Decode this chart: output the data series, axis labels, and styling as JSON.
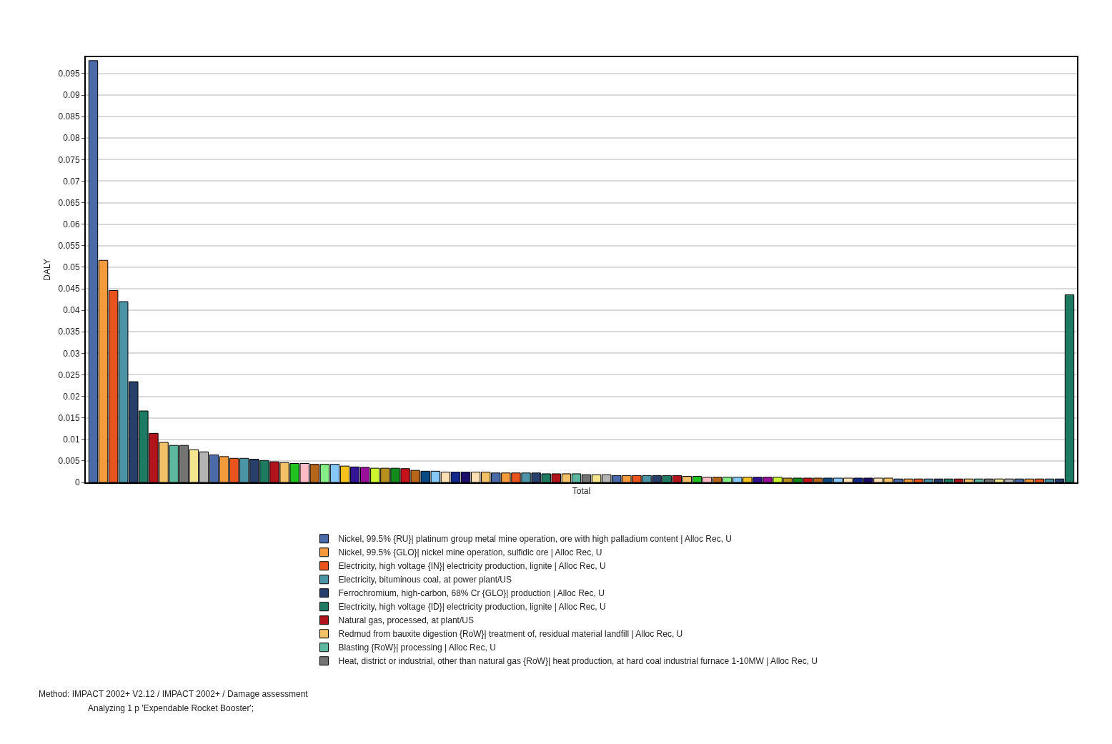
{
  "chart_data": {
    "type": "bar",
    "ylabel": "DALY",
    "categories": [
      "Total"
    ],
    "ylim": [
      0,
      0.0988
    ],
    "yticks": [
      0,
      0.005,
      0.01,
      0.015,
      0.02,
      0.025,
      0.03,
      0.035,
      0.04,
      0.045,
      0.05,
      0.055,
      0.06,
      0.065,
      0.07,
      0.075,
      0.08,
      0.085,
      0.09,
      0.095
    ],
    "grid": "y",
    "legend": "bottom",
    "annotations": [
      "Method: IMPACT 2002+ V2.12 / IMPACT 2002+ / Damage assessment",
      "Analyzing 1 p 'Expendable Rocket Booster';"
    ],
    "series": [
      {
        "name": "Nickel, 99.5% {RU}| platinum group metal mine operation, ore with high palladium content | Alloc Rec, U",
        "color": "#4a6aa8",
        "values": [
          0.098
        ]
      },
      {
        "name": "Nickel, 99.5% {GLO}| nickel mine operation, sulfidic ore | Alloc Rec, U",
        "color": "#f39a3c",
        "values": [
          0.0516
        ]
      },
      {
        "name": "Electricity, high voltage {IN}| electricity production, lignite | Alloc Rec, U",
        "color": "#e9531d",
        "values": [
          0.0446
        ]
      },
      {
        "name": "Electricity, bituminous coal, at power plant/US",
        "color": "#4a94a6",
        "values": [
          0.042
        ]
      },
      {
        "name": "Ferrochromium, high-carbon, 68% Cr {GLO}| production | Alloc Rec, U",
        "color": "#283f6c",
        "values": [
          0.0234
        ]
      },
      {
        "name": "Electricity, high voltage {ID}| electricity production, lignite | Alloc Rec, U",
        "color": "#1e7a60",
        "values": [
          0.0166
        ]
      },
      {
        "name": "Natural gas, processed, at plant/US",
        "color": "#b2141c",
        "values": [
          0.0114
        ]
      },
      {
        "name": "Redmud from bauxite digestion {RoW}| treatment of, residual material landfill | Alloc Rec, U",
        "color": "#f2c066",
        "values": [
          0.0093
        ]
      },
      {
        "name": "Blasting {RoW}| processing | Alloc Rec, U",
        "color": "#5db8a0",
        "values": [
          0.0086
        ]
      },
      {
        "name": "Heat, district or industrial, other than natural gas {RoW}| heat production, at hard coal industrial furnace 1-10MW | Alloc Rec, U",
        "color": "#747474",
        "values": [
          0.0086
        ]
      },
      {
        "color": "#f3e48e",
        "values": [
          0.0076
        ]
      },
      {
        "color": "#b4b4b4",
        "values": [
          0.0071
        ]
      },
      {
        "color": "#4a6aa8",
        "values": [
          0.0064
        ]
      },
      {
        "color": "#f39a3c",
        "values": [
          0.006
        ]
      },
      {
        "color": "#e9531d",
        "values": [
          0.0056
        ]
      },
      {
        "color": "#4a94a6",
        "values": [
          0.0056
        ]
      },
      {
        "color": "#283f6c",
        "values": [
          0.0054
        ]
      },
      {
        "color": "#1e7a60",
        "values": [
          0.0051
        ]
      },
      {
        "color": "#b2141c",
        "values": [
          0.0048
        ]
      },
      {
        "color": "#f2c066",
        "values": [
          0.0046
        ]
      },
      {
        "color": "#1fc21f",
        "values": [
          0.0044
        ]
      },
      {
        "color": "#ffbcc4",
        "values": [
          0.0044
        ]
      },
      {
        "color": "#b8651c",
        "values": [
          0.0042
        ]
      },
      {
        "color": "#86ee86",
        "values": [
          0.0042
        ]
      },
      {
        "color": "#86c8f8",
        "values": [
          0.0042
        ]
      },
      {
        "color": "#f8c21c",
        "values": [
          0.0038
        ]
      },
      {
        "color": "#341494",
        "values": [
          0.0036
        ]
      },
      {
        "color": "#9a109a",
        "values": [
          0.0035
        ]
      },
      {
        "color": "#cdf52e",
        "values": [
          0.0033
        ]
      },
      {
        "color": "#b8901c",
        "values": [
          0.0033
        ]
      },
      {
        "color": "#128a1c",
        "values": [
          0.0033
        ]
      },
      {
        "color": "#c4121c",
        "values": [
          0.0032
        ]
      },
      {
        "color": "#b8651c",
        "values": [
          0.0028
        ]
      },
      {
        "color": "#0c4a84",
        "values": [
          0.0026
        ]
      },
      {
        "color": "#86c8f8",
        "values": [
          0.0026
        ]
      },
      {
        "color": "#ffe0b4",
        "values": [
          0.0024
        ]
      },
      {
        "color": "#12288c",
        "values": [
          0.0024
        ]
      },
      {
        "color": "#1c0c6c",
        "values": [
          0.0024
        ]
      },
      {
        "color": "#ffe0b4",
        "values": [
          0.0024
        ]
      },
      {
        "color": "#f2c066",
        "values": [
          0.0024
        ]
      },
      {
        "color": "#4a6aa8",
        "values": [
          0.0022
        ]
      },
      {
        "color": "#f39a3c",
        "values": [
          0.0022
        ]
      },
      {
        "color": "#e9531d",
        "values": [
          0.0022
        ]
      },
      {
        "color": "#4a94a6",
        "values": [
          0.0022
        ]
      },
      {
        "color": "#283f6c",
        "values": [
          0.0022
        ]
      },
      {
        "color": "#1e7a60",
        "values": [
          0.002
        ]
      },
      {
        "color": "#b2141c",
        "values": [
          0.002
        ]
      },
      {
        "color": "#f2c066",
        "values": [
          0.002
        ]
      },
      {
        "color": "#5db8a0",
        "values": [
          0.002
        ]
      },
      {
        "color": "#747474",
        "values": [
          0.0018
        ]
      },
      {
        "color": "#f3e48e",
        "values": [
          0.0018
        ]
      },
      {
        "color": "#b4b4b4",
        "values": [
          0.0018
        ]
      },
      {
        "color": "#4a6aa8",
        "values": [
          0.0016
        ]
      },
      {
        "color": "#f39a3c",
        "values": [
          0.0016
        ]
      },
      {
        "color": "#e9531d",
        "values": [
          0.0016
        ]
      },
      {
        "color": "#4a94a6",
        "values": [
          0.0016
        ]
      },
      {
        "color": "#283f6c",
        "values": [
          0.0016
        ]
      },
      {
        "color": "#1e7a60",
        "values": [
          0.0016
        ]
      },
      {
        "color": "#b2141c",
        "values": [
          0.0016
        ]
      },
      {
        "color": "#f2c066",
        "values": [
          0.0014
        ]
      },
      {
        "color": "#1fc21f",
        "values": [
          0.0014
        ]
      },
      {
        "color": "#ffbcc4",
        "values": [
          0.0012
        ]
      },
      {
        "color": "#b8651c",
        "values": [
          0.0012
        ]
      },
      {
        "color": "#86ee86",
        "values": [
          0.0012
        ]
      },
      {
        "color": "#86c8f8",
        "values": [
          0.0012
        ]
      },
      {
        "color": "#f8c21c",
        "values": [
          0.0012
        ]
      },
      {
        "color": "#341494",
        "values": [
          0.0012
        ]
      },
      {
        "color": "#9a109a",
        "values": [
          0.0012
        ]
      },
      {
        "color": "#cdf52e",
        "values": [
          0.0012
        ]
      },
      {
        "color": "#b8901c",
        "values": [
          0.001
        ]
      },
      {
        "color": "#128a1c",
        "values": [
          0.001
        ]
      },
      {
        "color": "#c4121c",
        "values": [
          0.001
        ]
      },
      {
        "color": "#b8651c",
        "values": [
          0.001
        ]
      },
      {
        "color": "#0c4a84",
        "values": [
          0.001
        ]
      },
      {
        "color": "#86c8f8",
        "values": [
          0.001
        ]
      },
      {
        "color": "#ffe0b4",
        "values": [
          0.001
        ]
      },
      {
        "color": "#12288c",
        "values": [
          0.001
        ]
      },
      {
        "color": "#1c0c6c",
        "values": [
          0.001
        ]
      },
      {
        "color": "#ffe0b4",
        "values": [
          0.001
        ]
      },
      {
        "color": "#f2c066",
        "values": [
          0.001
        ]
      },
      {
        "color": "#4a6aa8",
        "values": [
          0.0008
        ]
      },
      {
        "color": "#f39a3c",
        "values": [
          0.0008
        ]
      },
      {
        "color": "#e9531d",
        "values": [
          0.0008
        ]
      },
      {
        "color": "#4a94a6",
        "values": [
          0.0008
        ]
      },
      {
        "color": "#283f6c",
        "values": [
          0.0008
        ]
      },
      {
        "color": "#1e7a60",
        "values": [
          0.0008
        ]
      },
      {
        "color": "#b2141c",
        "values": [
          0.0008
        ]
      },
      {
        "color": "#f2c066",
        "values": [
          0.0008
        ]
      },
      {
        "color": "#5db8a0",
        "values": [
          0.0008
        ]
      },
      {
        "color": "#747474",
        "values": [
          0.0008
        ]
      },
      {
        "color": "#f3e48e",
        "values": [
          0.0008
        ]
      },
      {
        "color": "#b4b4b4",
        "values": [
          0.0008
        ]
      },
      {
        "color": "#4a6aa8",
        "values": [
          0.0008
        ]
      },
      {
        "color": "#f39a3c",
        "values": [
          0.0008
        ]
      },
      {
        "color": "#e9531d",
        "values": [
          0.0008
        ]
      },
      {
        "color": "#4a94a6",
        "values": [
          0.0008
        ]
      },
      {
        "color": "#283f6c",
        "values": [
          0.0008
        ]
      },
      {
        "color": "#1e7a60",
        "values": [
          0.0436
        ]
      }
    ]
  }
}
